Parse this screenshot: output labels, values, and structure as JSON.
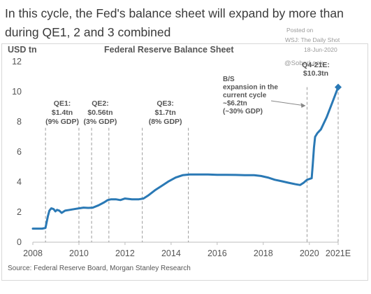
{
  "headline": "In this cycle, the Fed's balance sheet will expand by more than during QE1, 2 and 3 combined",
  "posted": {
    "line1": "Posted on",
    "line2": "WSJ: The Daily Shot",
    "line3": "18-Jun-2020"
  },
  "watermark": "@SoberLook",
  "source": "Source: Federal Reserve Board, Morgan Stanley Research",
  "colors": {
    "series": "#2a79b5",
    "text": "#555555",
    "dashed": "#9a9a9a"
  },
  "chart_data": {
    "type": "line",
    "title": "Federal Reserve Balance Sheet",
    "ylabel": "USD tn",
    "xlabel": "",
    "xlim": [
      2008,
      2021.25
    ],
    "ylim": [
      0,
      12
    ],
    "x_ticks": [
      2008,
      2010,
      2012,
      2014,
      2016,
      2018,
      2020,
      2021.25
    ],
    "x_tick_labels": [
      "2008",
      "2010",
      "2012",
      "2014",
      "2016",
      "2018",
      "2020",
      "2021E"
    ],
    "y_ticks": [
      0,
      2,
      4,
      6,
      8,
      10,
      12
    ],
    "y_tick_labels": [
      "0",
      "2",
      "4",
      "6",
      "8",
      "10",
      "12"
    ],
    "grid": false,
    "legend": "none",
    "series": [
      {
        "name": "",
        "x": [
          2008.0,
          2008.4,
          2008.55,
          2008.65,
          2008.72,
          2008.8,
          2008.9,
          2008.98,
          2009.05,
          2009.15,
          2009.25,
          2009.4,
          2009.6,
          2009.8,
          2010.0,
          2010.2,
          2010.4,
          2010.6,
          2010.85,
          2011.1,
          2011.25,
          2011.4,
          2011.6,
          2011.8,
          2012.0,
          2012.3,
          2012.6,
          2012.8,
          2013.0,
          2013.3,
          2013.6,
          2013.9,
          2014.2,
          2014.5,
          2014.8,
          2015.2,
          2015.6,
          2016.0,
          2016.4,
          2016.8,
          2017.2,
          2017.6,
          2017.9,
          2018.2,
          2018.5,
          2018.8,
          2019.1,
          2019.4,
          2019.6,
          2019.75,
          2019.9,
          2020.0,
          2020.1,
          2020.15,
          2020.2,
          2020.25,
          2020.35,
          2020.5,
          2020.75,
          2021.0,
          2021.25
        ],
        "y": [
          0.9,
          0.9,
          0.95,
          1.7,
          2.1,
          2.25,
          2.2,
          2.05,
          2.15,
          2.1,
          1.95,
          2.1,
          2.15,
          2.2,
          2.25,
          2.3,
          2.28,
          2.3,
          2.45,
          2.65,
          2.8,
          2.85,
          2.85,
          2.8,
          2.9,
          2.85,
          2.85,
          2.9,
          3.1,
          3.45,
          3.75,
          4.05,
          4.3,
          4.45,
          4.5,
          4.5,
          4.5,
          4.48,
          4.48,
          4.47,
          4.45,
          4.45,
          4.4,
          4.3,
          4.15,
          4.05,
          3.95,
          3.85,
          3.8,
          3.95,
          4.15,
          4.2,
          4.25,
          5.2,
          6.3,
          7.0,
          7.25,
          7.5,
          8.3,
          9.3,
          10.3
        ]
      }
    ],
    "annotations": [
      {
        "label": "QE1:",
        "lines": [
          "$1.4tn",
          "(9% GDP)"
        ],
        "x_start": 2008.55,
        "x_end": 2010.0
      },
      {
        "label": "QE2:",
        "lines": [
          "$0.56tn",
          "(3% GDP)"
        ],
        "x_start": 2010.55,
        "x_end": 2011.3
      },
      {
        "label": "QE3:",
        "lines": [
          "$1.7tn",
          "(8% GDP)"
        ],
        "x_start": 2012.75,
        "x_end": 2014.75
      }
    ],
    "current_cycle": {
      "x_start": 2019.9,
      "lines": [
        "B/S",
        "expansion in the",
        "current cycle",
        "~$6.2tn",
        "(~30% GDP)"
      ]
    },
    "endpoint": {
      "x": 2021.25,
      "y": 10.3,
      "lines": [
        "Q4-21E:",
        "$10.3tn"
      ]
    }
  }
}
